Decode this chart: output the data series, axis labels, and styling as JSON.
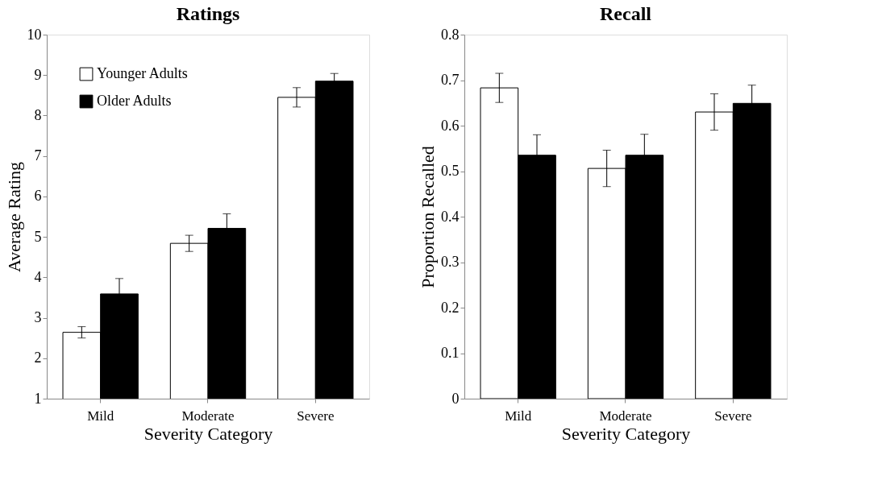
{
  "chart_data": [
    {
      "type": "bar",
      "title": "Ratings",
      "xlabel": "Severity Category",
      "ylabel": "Average Rating",
      "categories": [
        "Mild",
        "Moderate",
        "Severe"
      ],
      "ylim": [
        1,
        10
      ],
      "yticks": [
        1,
        2,
        3,
        4,
        5,
        6,
        7,
        8,
        9,
        10
      ],
      "grid": false,
      "legend": "top left",
      "series": [
        {
          "name": "Younger Adults",
          "color": "#ffffff",
          "values": [
            2.64,
            4.84,
            8.45
          ],
          "errors": [
            0.14,
            0.2,
            0.24
          ]
        },
        {
          "name": "Older Adults",
          "color": "#000000",
          "values": [
            3.59,
            5.21,
            8.85
          ],
          "errors": [
            0.38,
            0.36,
            0.19
          ]
        }
      ]
    },
    {
      "type": "bar",
      "title": "Recall",
      "xlabel": "Severity Category",
      "ylabel": "Proportion Recalled",
      "categories": [
        "Mild",
        "Moderate",
        "Severe"
      ],
      "ylim": [
        0,
        0.8
      ],
      "yticks": [
        0,
        0.1,
        0.2,
        0.3,
        0.4,
        0.5,
        0.6,
        0.7,
        0.8
      ],
      "grid": false,
      "legend": false,
      "series": [
        {
          "color": "#ffffff",
          "values": [
            0.683,
            0.506,
            0.63
          ],
          "errors": [
            0.032,
            0.04,
            0.04
          ]
        },
        {
          "color": "#000000",
          "values": [
            0.535,
            0.535,
            0.649
          ],
          "errors": [
            0.045,
            0.046,
            0.04
          ]
        }
      ]
    }
  ]
}
